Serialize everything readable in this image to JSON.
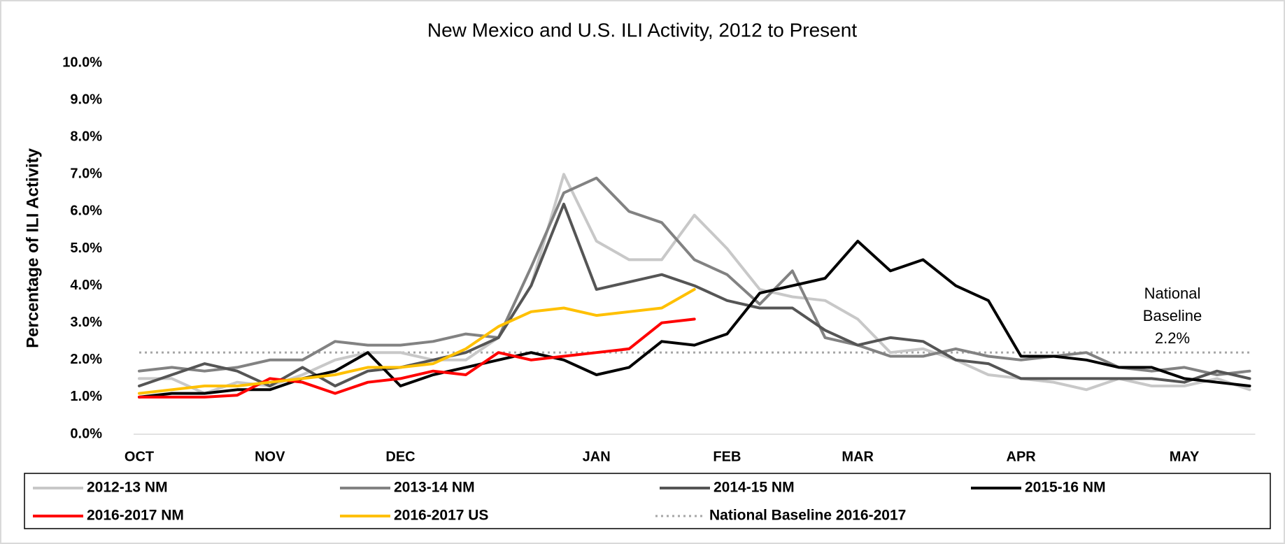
{
  "chart_data": {
    "type": "line",
    "title": "New Mexico and U.S. ILI Activity, 2012 to Present",
    "y_label": "Percentage of ILI Activity",
    "categories": [
      "OCT",
      null,
      null,
      null,
      "NOV",
      null,
      null,
      null,
      "DEC",
      null,
      null,
      null,
      null,
      null,
      "JAN",
      null,
      null,
      null,
      "FEB",
      null,
      null,
      null,
      "MAR",
      null,
      null,
      null,
      null,
      "APR",
      null,
      null,
      null,
      null,
      "MAY",
      null,
      null
    ],
    "ylim": [
      0,
      10
    ],
    "yticks": [
      {
        "value": 0,
        "label": "0.0%"
      },
      {
        "value": 1,
        "label": "1.0%"
      },
      {
        "value": 2,
        "label": "2.0%"
      },
      {
        "value": 3,
        "label": "3.0%"
      },
      {
        "value": 4,
        "label": "4.0%"
      },
      {
        "value": 5,
        "label": "5.0%"
      },
      {
        "value": 6,
        "label": "6.0%"
      },
      {
        "value": 7,
        "label": "7.0%"
      },
      {
        "value": 8,
        "label": "8.0%"
      },
      {
        "value": 9,
        "label": "9.0%"
      },
      {
        "value": 10,
        "label": "10.0%"
      }
    ],
    "series": [
      {
        "name": "2012-13 NM",
        "color": "#c8c8c8",
        "values": [
          1.5,
          1.5,
          1.1,
          1.4,
          1.3,
          1.6,
          2.0,
          2.2,
          2.2,
          2.0,
          2.0,
          2.6,
          4.0,
          7.0,
          5.2,
          4.7,
          4.7,
          5.9,
          5.0,
          3.9,
          3.7,
          3.6,
          3.1,
          2.2,
          2.3,
          2.0,
          1.6,
          1.5,
          1.4,
          1.2,
          1.5,
          1.3,
          1.3,
          1.5,
          1.2
        ]
      },
      {
        "name": "2013-14 NM",
        "color": "#828282",
        "values": [
          1.7,
          1.8,
          1.7,
          1.8,
          2.0,
          2.0,
          2.5,
          2.4,
          2.4,
          2.5,
          2.7,
          2.6,
          4.5,
          6.5,
          6.9,
          6.0,
          5.7,
          4.7,
          4.3,
          3.5,
          4.4,
          2.6,
          2.4,
          2.1,
          2.1,
          2.3,
          2.1,
          2.0,
          2.1,
          2.2,
          1.8,
          1.7,
          1.8,
          1.6,
          1.7
        ]
      },
      {
        "name": "2014-15 NM",
        "color": "#555555",
        "values": [
          1.3,
          1.6,
          1.9,
          1.7,
          1.3,
          1.8,
          1.3,
          1.7,
          1.8,
          2.0,
          2.2,
          2.6,
          4.0,
          6.2,
          3.9,
          4.1,
          4.3,
          4.0,
          3.6,
          3.4,
          3.4,
          2.8,
          2.4,
          2.6,
          2.5,
          2.0,
          1.9,
          1.5,
          1.5,
          1.5,
          1.5,
          1.5,
          1.4,
          1.7,
          1.5
        ]
      },
      {
        "name": "2015-16 NM",
        "color": "#000000",
        "values": [
          1.0,
          1.1,
          1.1,
          1.2,
          1.2,
          1.5,
          1.7,
          2.2,
          1.3,
          1.6,
          1.8,
          2.0,
          2.2,
          2.0,
          1.6,
          1.8,
          2.5,
          2.4,
          2.7,
          3.8,
          4.0,
          4.2,
          5.2,
          4.4,
          4.7,
          4.0,
          3.6,
          2.1,
          2.1,
          2.0,
          1.8,
          1.8,
          1.5,
          1.4,
          1.3
        ]
      },
      {
        "name": "2016-2017 NM",
        "color": "#ff0000",
        "values": [
          1.0,
          1.0,
          1.0,
          1.05,
          1.5,
          1.4,
          1.1,
          1.4,
          1.5,
          1.7,
          1.6,
          2.2,
          2.0,
          2.1,
          2.2,
          2.3,
          3.0,
          3.1,
          null,
          null,
          null,
          null,
          null,
          null,
          null,
          null,
          null,
          null,
          null,
          null,
          null,
          null,
          null,
          null,
          null
        ]
      },
      {
        "name": "2016-2017 US",
        "color": "#ffc000",
        "values": [
          1.1,
          1.2,
          1.3,
          1.3,
          1.4,
          1.5,
          1.6,
          1.8,
          1.8,
          1.9,
          2.3,
          2.9,
          3.3,
          3.4,
          3.2,
          3.3,
          3.4,
          3.9,
          null,
          null,
          null,
          null,
          null,
          null,
          null,
          null,
          null,
          null,
          null,
          null,
          null,
          null,
          null,
          null,
          null
        ]
      }
    ],
    "baseline": {
      "name": "National Baseline 2016-2017",
      "value": 2.2,
      "color": "#a6a6a6"
    },
    "annotation": [
      "National",
      "Baseline",
      "2.2%"
    ]
  }
}
